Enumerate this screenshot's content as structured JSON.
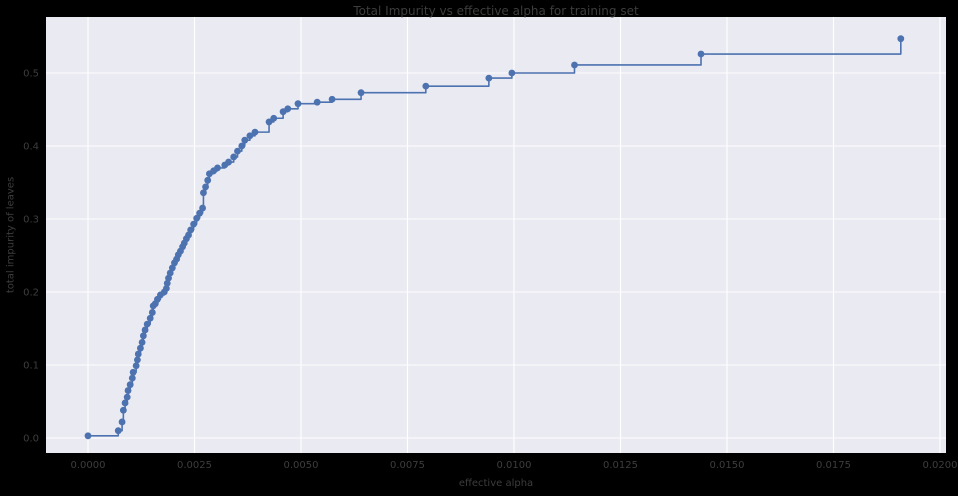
{
  "figure": {
    "background_color": "#000000",
    "text_color": "#3d3d3d"
  },
  "chart_data": {
    "type": "line",
    "drawstyle": "steps-post",
    "marker": "circle",
    "title": "Total Impurity vs effective alpha for training set",
    "xlabel": "effective alpha",
    "ylabel": "total impurity of leaves",
    "grid": true,
    "legend": false,
    "plot_bg_color": "#eaeaf2",
    "grid_color": "#ffffff",
    "line_color": "#4c72b0",
    "xlim": [
      -0.001,
      0.0201
    ],
    "ylim": [
      -0.021,
      0.577
    ],
    "x_ticks": {
      "values": [
        0.0,
        0.0025,
        0.005,
        0.0075,
        0.01,
        0.0125,
        0.015,
        0.0175,
        0.02
      ],
      "labels": [
        "0.0000",
        "0.0025",
        "0.0050",
        "0.0075",
        "0.0100",
        "0.0125",
        "0.0150",
        "0.0175",
        "0.0200"
      ]
    },
    "y_ticks": {
      "values": [
        0.0,
        0.1,
        0.2,
        0.3,
        0.4,
        0.5
      ],
      "labels": [
        "0.0",
        "0.1",
        "0.2",
        "0.3",
        "0.4",
        "0.5"
      ]
    },
    "series": [
      {
        "name": "total impurity of leaves",
        "x": [
          0.0,
          0.00071,
          0.0008,
          0.00083,
          0.00087,
          0.00092,
          0.00094,
          0.00099,
          0.00104,
          0.00106,
          0.00113,
          0.00116,
          0.00118,
          0.00123,
          0.00127,
          0.0013,
          0.00134,
          0.00139,
          0.00146,
          0.00151,
          0.00153,
          0.00158,
          0.00163,
          0.0017,
          0.00179,
          0.00184,
          0.00186,
          0.00189,
          0.00193,
          0.00198,
          0.00203,
          0.00208,
          0.00212,
          0.00217,
          0.00222,
          0.00226,
          0.00231,
          0.00236,
          0.00241,
          0.00248,
          0.00255,
          0.00262,
          0.00269,
          0.00271,
          0.00276,
          0.00281,
          0.00285,
          0.00295,
          0.00304,
          0.00321,
          0.0033,
          0.00342,
          0.00351,
          0.00361,
          0.00368,
          0.0038,
          0.00392,
          0.00425,
          0.00436,
          0.00458,
          0.00469,
          0.00493,
          0.00538,
          0.00573,
          0.00641,
          0.00793,
          0.00941,
          0.00995,
          0.01142,
          0.01439,
          0.01908
        ],
        "y": [
          0.003,
          0.01,
          0.022,
          0.038,
          0.048,
          0.056,
          0.065,
          0.073,
          0.082,
          0.09,
          0.099,
          0.107,
          0.115,
          0.123,
          0.131,
          0.14,
          0.148,
          0.156,
          0.164,
          0.172,
          0.181,
          0.184,
          0.19,
          0.196,
          0.2,
          0.205,
          0.212,
          0.219,
          0.226,
          0.233,
          0.24,
          0.245,
          0.251,
          0.256,
          0.262,
          0.267,
          0.273,
          0.278,
          0.285,
          0.293,
          0.301,
          0.308,
          0.315,
          0.336,
          0.344,
          0.353,
          0.362,
          0.366,
          0.37,
          0.374,
          0.378,
          0.385,
          0.393,
          0.4,
          0.408,
          0.414,
          0.419,
          0.433,
          0.438,
          0.447,
          0.451,
          0.458,
          0.46,
          0.464,
          0.473,
          0.482,
          0.493,
          0.5,
          0.511,
          0.526,
          0.547
        ]
      }
    ]
  }
}
